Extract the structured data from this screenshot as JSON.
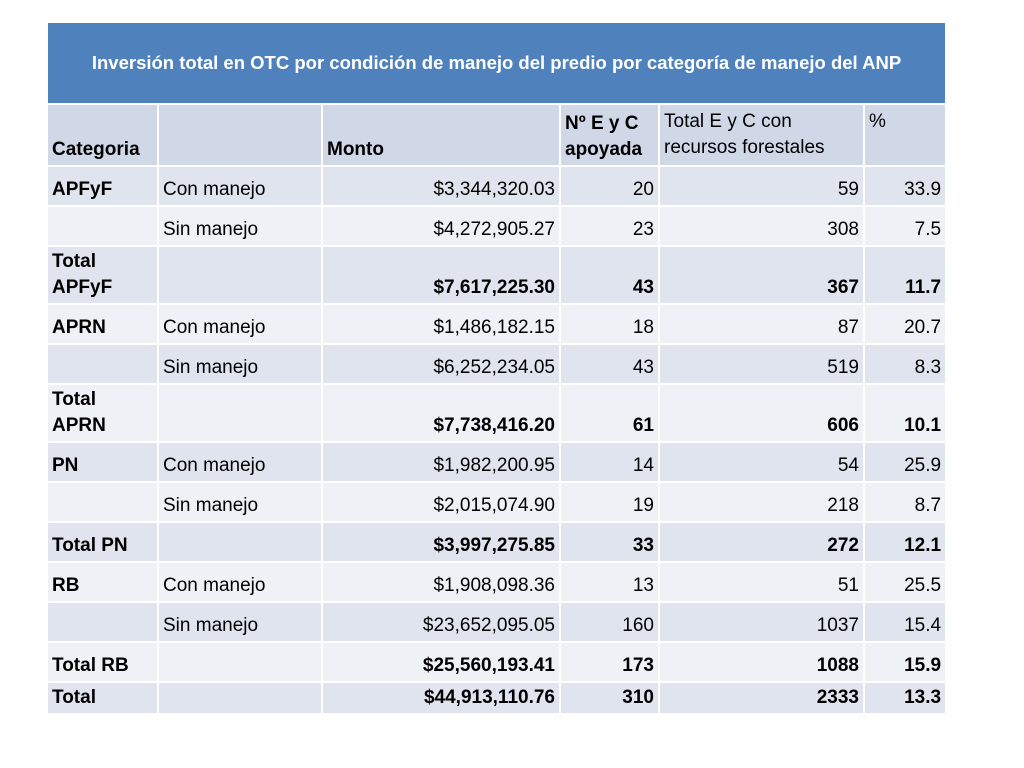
{
  "title": "Inversión total  en OTC por condición de manejo del predio por categoría de manejo del ANP",
  "headers": {
    "categoria": "Categoria",
    "condicion": "",
    "monto": "Monto",
    "ne_line1": "Nº E y C",
    "ne_line2": "apoyada",
    "total_line1": "Total E y C con",
    "total_line2": "recursos forestales",
    "pct": "%"
  },
  "rows": [
    {
      "categoria": "APFyF",
      "condicion": "Con manejo",
      "monto": "$3,344,320.03",
      "ne": "20",
      "total": "59",
      "pct": "33.9"
    },
    {
      "categoria": "",
      "condicion": "Sin manejo",
      "monto": "$4,272,905.27",
      "ne": "23",
      "total": "308",
      "pct": "7.5"
    },
    {
      "categoria_l1": "Total",
      "categoria_l2": "APFyF",
      "condicion": "",
      "monto": "$7,617,225.30",
      "ne": "43",
      "total": "367",
      "pct": "11.7"
    },
    {
      "categoria": "APRN",
      "condicion": "Con manejo",
      "monto": "$1,486,182.15",
      "ne": "18",
      "total": "87",
      "pct": "20.7"
    },
    {
      "categoria": "",
      "condicion": "Sin manejo",
      "monto": "$6,252,234.05",
      "ne": "43",
      "total": "519",
      "pct": "8.3"
    },
    {
      "categoria_l1": "Total",
      "categoria_l2": "APRN",
      "condicion": "",
      "monto": "$7,738,416.20",
      "ne": "61",
      "total": "606",
      "pct": "10.1"
    },
    {
      "categoria": "PN",
      "condicion": "Con manejo",
      "monto": "$1,982,200.95",
      "ne": "14",
      "total": "54",
      "pct": "25.9"
    },
    {
      "categoria": "",
      "condicion": "Sin manejo",
      "monto": "$2,015,074.90",
      "ne": "19",
      "total": "218",
      "pct": "8.7"
    },
    {
      "categoria": "Total PN",
      "condicion": "",
      "monto": "$3,997,275.85",
      "ne": "33",
      "total": "272",
      "pct": "12.1"
    },
    {
      "categoria": "RB",
      "condicion": "Con manejo",
      "monto": "$1,908,098.36",
      "ne": "13",
      "total": "51",
      "pct": "25.5"
    },
    {
      "categoria": "",
      "condicion": "Sin manejo",
      "monto": "$23,652,095.05",
      "ne": "160",
      "total": "1037",
      "pct": "15.4"
    },
    {
      "categoria": "Total RB",
      "condicion": "",
      "monto": "$25,560,193.41",
      "ne": "173",
      "total": "1088",
      "pct": "15.9"
    },
    {
      "categoria": "Total",
      "condicion": "",
      "monto": "$44,913,110.76",
      "ne": "310",
      "total": "2333",
      "pct": "13.3"
    }
  ],
  "colors": {
    "title_bg": "#4f81bd",
    "header_bg": "#d0d8e8",
    "band_dark": "#dfe4ee",
    "band_light": "#eef1f6"
  }
}
